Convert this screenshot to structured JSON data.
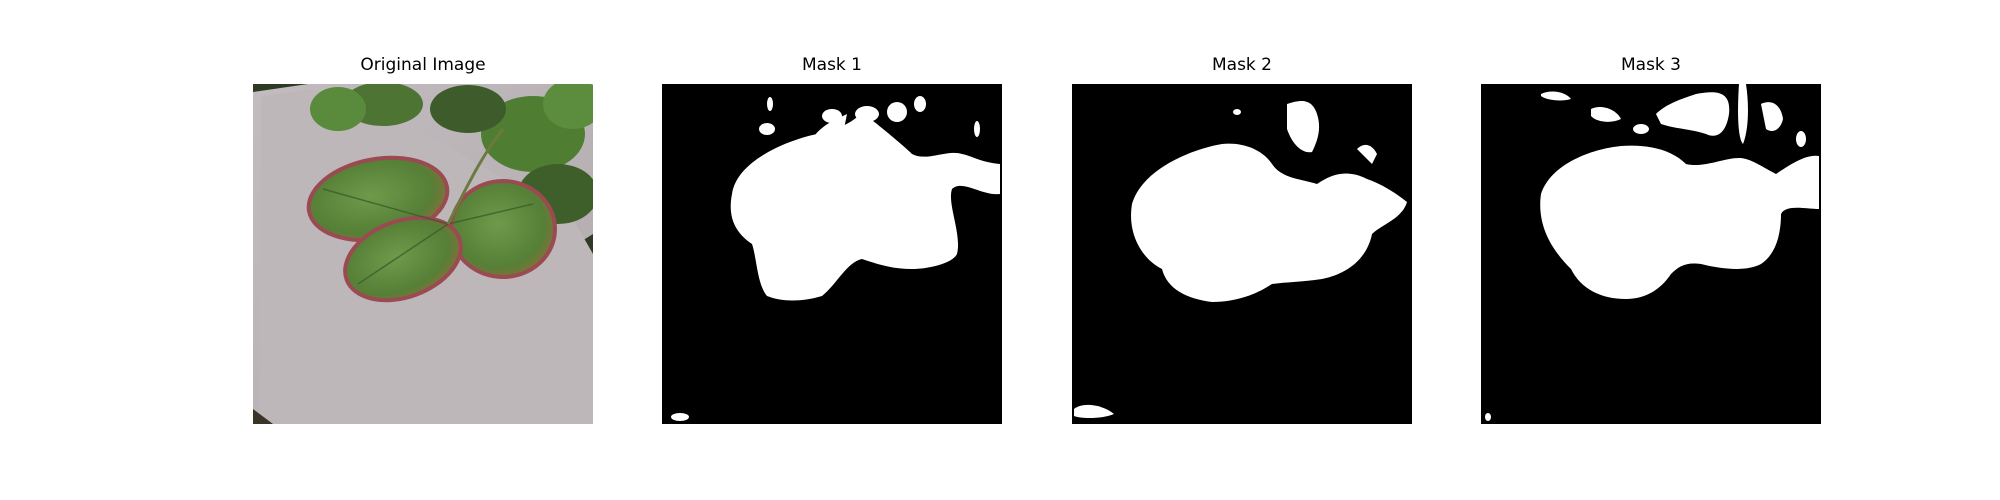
{
  "figure": {
    "panels": [
      {
        "title": "Original Image",
        "kind": "photo",
        "description_hidden": true
      },
      {
        "title": "Mask 1",
        "kind": "mask"
      },
      {
        "title": "Mask 2",
        "kind": "mask"
      },
      {
        "title": "Mask 3",
        "kind": "mask"
      }
    ]
  },
  "colors": {
    "background": "#ffffff",
    "mask_background": "#000000",
    "mask_foreground": "#ffffff",
    "paper": "#b9b3b6",
    "leaf_green": "#5f8a3e",
    "leaf_edge": "#a54a55"
  }
}
